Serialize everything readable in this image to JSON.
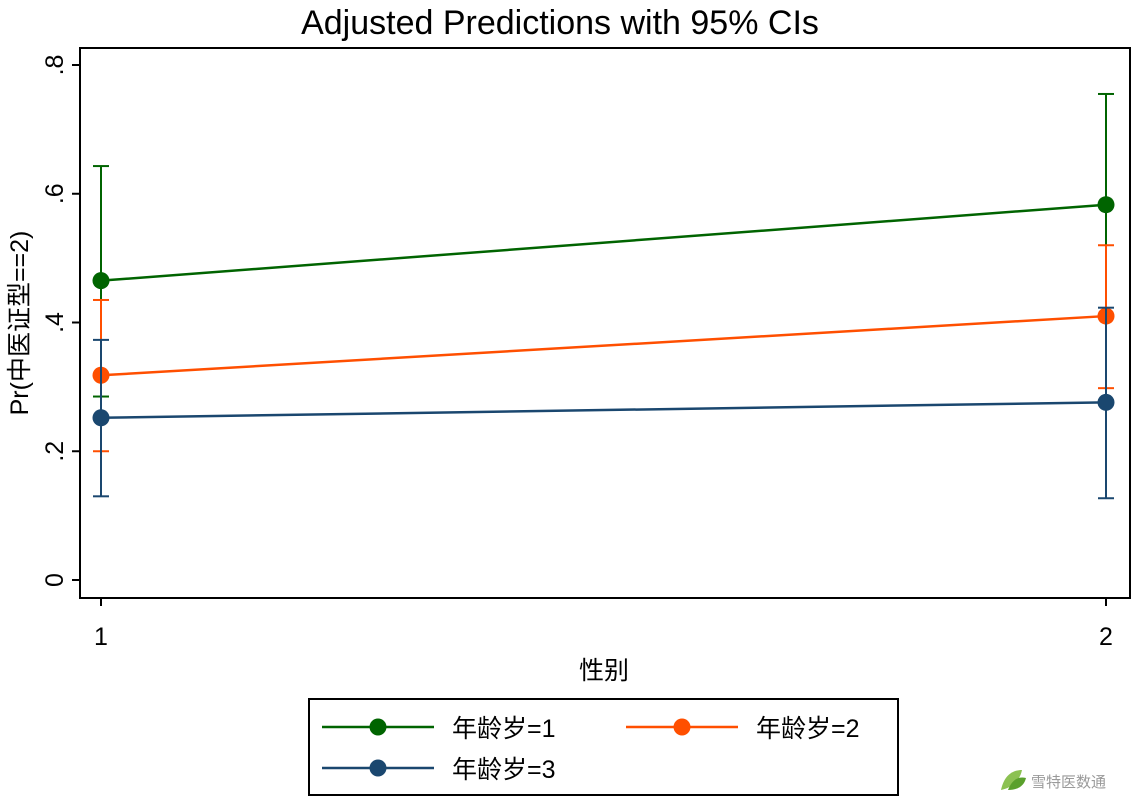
{
  "chart_data": {
    "type": "line",
    "title": "Adjusted Predictions with 95% CIs",
    "xlabel": "性别",
    "ylabel": "Pr(中医证型==2)",
    "x": [
      1,
      2
    ],
    "x_ticks": [
      "1",
      "2"
    ],
    "y_ticks": [
      "0",
      ".2",
      ".4",
      ".6",
      ".8"
    ],
    "y_tick_values": [
      0,
      0.2,
      0.4,
      0.6,
      0.8
    ],
    "ylim": [
      0,
      0.8
    ],
    "grid": false,
    "legend_position": "bottom",
    "series": [
      {
        "name": "年龄岁=1",
        "color": "#006400",
        "values": [
          0.465,
          0.583
        ],
        "ci_low": [
          0.285,
          0.41
        ],
        "ci_high": [
          0.643,
          0.755
        ]
      },
      {
        "name": "年龄岁=2",
        "color": "#ff4f00",
        "values": [
          0.318,
          0.41
        ],
        "ci_low": [
          0.2,
          0.298
        ],
        "ci_high": [
          0.435,
          0.52
        ]
      },
      {
        "name": "年龄岁=3",
        "color": "#1a476f",
        "values": [
          0.252,
          0.276
        ],
        "ci_low": [
          0.13,
          0.127
        ],
        "ci_high": [
          0.373,
          0.423
        ]
      }
    ]
  },
  "watermark": {
    "text": "雪特医数通",
    "icon": "leaf-logo-icon"
  }
}
